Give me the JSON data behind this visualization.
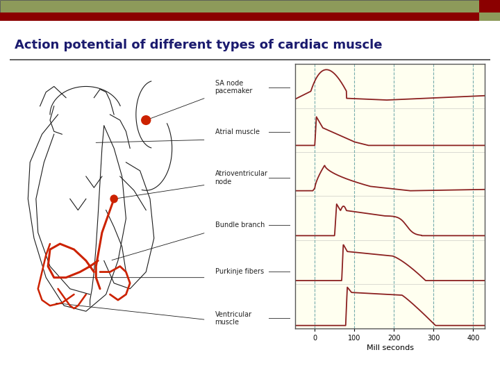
{
  "title": "Action potential of different types of cardiac muscle",
  "title_color": "#1a1a6e",
  "title_fontsize": 13,
  "background_color": "#ffffff",
  "header_bar1_color": "#8d9a5a",
  "header_bar2_color": "#8b0000",
  "graph_bg_color": "#fffff0",
  "graph_border_color": "#555555",
  "curve_color": "#8b2020",
  "dashed_line_color": "#5f9ea0",
  "x_ticks": [
    0,
    100,
    200,
    300,
    400
  ],
  "x_label": "Mill seconds",
  "x_min": -50,
  "x_max": 430,
  "labels": [
    "SA node\npacemaker",
    "Atrial muscle",
    "Atrioventricular\nnode",
    "Bundle branch",
    "Purkinje fibers",
    "Ventricular\nmuscle"
  ],
  "label_fontsize": 7.0,
  "heart_line_color": "#1a1a1a",
  "heart_red_color": "#cc2200"
}
